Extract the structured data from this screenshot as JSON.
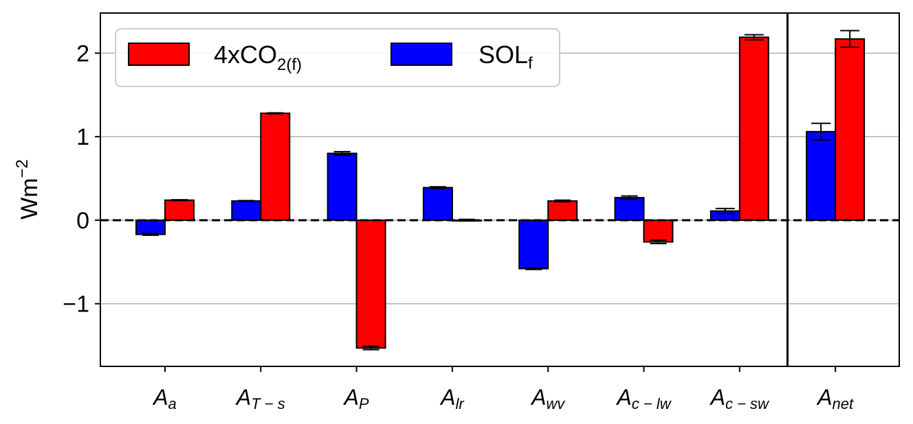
{
  "chart_data": {
    "type": "bar",
    "ylabel": "Wm",
    "ylabel_sup": "−2",
    "ylim": [
      -1.75,
      2.48
    ],
    "yticks": [
      -1,
      0,
      1,
      2
    ],
    "ytick_labels": [
      "−1",
      "0",
      "1",
      "2"
    ],
    "grid": "y",
    "legend_placement": "top-left",
    "categories": [
      {
        "main": "A",
        "sub": "a"
      },
      {
        "main": "A",
        "sub": "T − s"
      },
      {
        "main": "A",
        "sub": "P"
      },
      {
        "main": "A",
        "sub": "lr"
      },
      {
        "main": "A",
        "sub": "wv"
      },
      {
        "main": "A",
        "sub": "c − lw"
      },
      {
        "main": "A",
        "sub": "c − sw"
      },
      {
        "main": "A",
        "sub": "net"
      }
    ],
    "series": [
      {
        "name": "SOL",
        "name_sub": "f",
        "color": "#0000ff",
        "values": [
          -0.17,
          0.23,
          0.8,
          0.39,
          -0.58,
          0.27,
          0.11,
          1.06
        ],
        "errors": [
          0.01,
          0.005,
          0.02,
          0.01,
          0.01,
          0.02,
          0.03,
          0.1
        ]
      },
      {
        "name": "4xCO",
        "name_sub": "2(f)",
        "color": "#ff0000",
        "values": [
          0.24,
          1.28,
          -1.53,
          0.0,
          0.23,
          -0.26,
          2.19,
          2.17
        ],
        "errors": [
          0.005,
          0.005,
          0.02,
          0.01,
          0.01,
          0.02,
          0.03,
          0.1
        ]
      }
    ],
    "reference_line": 0,
    "separator_after_category": 7
  }
}
